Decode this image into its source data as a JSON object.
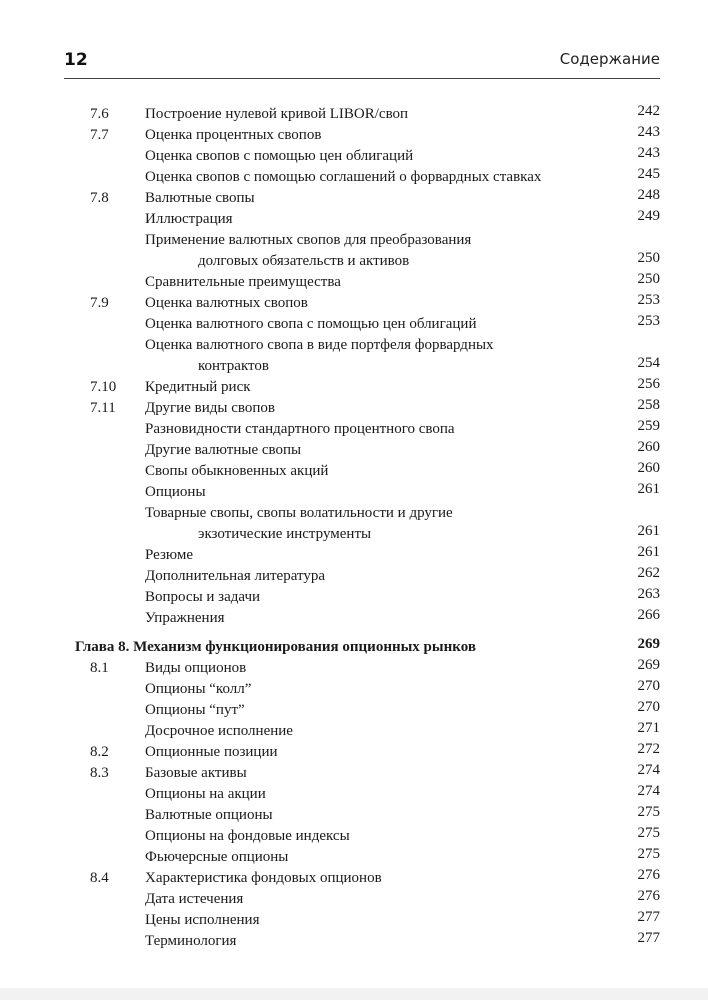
{
  "header": {
    "page_number": "12",
    "section_title": "Содержание"
  },
  "entries": [
    {
      "num": "7.6",
      "title": "Построение нулевой кривой LIBOR/своп",
      "page": "242"
    },
    {
      "num": "7.7",
      "title": "Оценка процентных свопов",
      "page": "243"
    },
    {
      "num": "",
      "title": "Оценка свопов с помощью цен облигаций",
      "page": "243"
    },
    {
      "num": "",
      "title": "Оценка свопов с помощью соглашений о форвардных ставках",
      "page": "245"
    },
    {
      "num": "7.8",
      "title": "Валютные свопы",
      "page": "248"
    },
    {
      "num": "",
      "title": "Иллюстрация",
      "page": "249"
    },
    {
      "num": "",
      "title": "Применение валютных свопов для преобразования",
      "cont": "долговых обязательств и активов",
      "page": "250"
    },
    {
      "num": "",
      "title": "Сравнительные преимущества",
      "page": "250"
    },
    {
      "num": "7.9",
      "title": "Оценка валютных свопов",
      "page": "253"
    },
    {
      "num": "",
      "title": "Оценка валютного свопа с помощью цен облигаций",
      "page": "253"
    },
    {
      "num": "",
      "title": "Оценка валютного свопа в виде портфеля форвардных",
      "cont": "контрактов",
      "page": "254"
    },
    {
      "num": "7.10",
      "title": "Кредитный риск",
      "page": "256"
    },
    {
      "num": "7.11",
      "title": "Другие виды свопов",
      "page": "258"
    },
    {
      "num": "",
      "title": "Разновидности стандартного процентного свопа",
      "page": "259"
    },
    {
      "num": "",
      "title": "Другие валютные свопы",
      "page": "260"
    },
    {
      "num": "",
      "title": "Свопы обыкновенных акций",
      "page": "260"
    },
    {
      "num": "",
      "title": "Опционы",
      "page": "261"
    },
    {
      "num": "",
      "title": "Товарные свопы, свопы волатильности и другие",
      "cont": "экзотические инструменты",
      "page": "261"
    },
    {
      "num": "",
      "title": "Резюме",
      "page": "261"
    },
    {
      "num": "",
      "title": "Дополнительная литература",
      "page": "262"
    },
    {
      "num": "",
      "title": "Вопросы и задачи",
      "page": "263"
    },
    {
      "num": "",
      "title": "Упражнения",
      "page": "266"
    },
    {
      "num": "",
      "title": "Глава 8. Механизм функционирования опционных рынков",
      "page": "269",
      "chapter": true
    },
    {
      "num": "8.1",
      "title": "Виды опционов",
      "page": "269"
    },
    {
      "num": "",
      "title": "Опционы “колл”",
      "page": "270"
    },
    {
      "num": "",
      "title": "Опционы “пут”",
      "page": "270"
    },
    {
      "num": "",
      "title": "Досрочное исполнение",
      "page": "271"
    },
    {
      "num": "8.2",
      "title": "Опционные позиции",
      "page": "272"
    },
    {
      "num": "8.3",
      "title": "Базовые активы",
      "page": "274"
    },
    {
      "num": "",
      "title": "Опционы на акции",
      "page": "274"
    },
    {
      "num": "",
      "title": "Валютные опционы",
      "page": "275"
    },
    {
      "num": "",
      "title": "Опционы на фондовые индексы",
      "page": "275"
    },
    {
      "num": "",
      "title": "Фьючерсные опционы",
      "page": "275"
    },
    {
      "num": "8.4",
      "title": "Характеристика фондовых опционов",
      "page": "276"
    },
    {
      "num": "",
      "title": "Дата истечения",
      "page": "276"
    },
    {
      "num": "",
      "title": "Цены исполнения",
      "page": "277"
    },
    {
      "num": "",
      "title": "Терминология",
      "page": "277"
    }
  ]
}
